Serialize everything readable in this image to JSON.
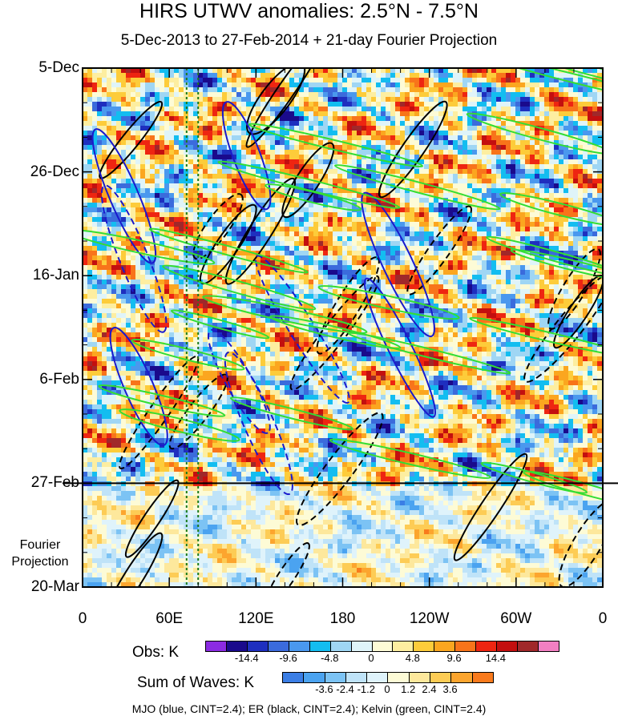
{
  "chart_data": {
    "type": "heatmap",
    "title": "HIRS UTWV anomalies: 2.5°N - 7.5°N",
    "subtitle": "5-Dec-2013 to 27-Feb-2014 + 21-day Fourier Projection",
    "x_ticks": [
      "0",
      "60E",
      "120E",
      "180",
      "120W",
      "60W",
      "0"
    ],
    "y_ticks": [
      "5-Dec",
      "26-Dec",
      "16-Jan",
      "6-Feb",
      "27-Feb",
      "20-Mar"
    ],
    "fourier_label": "Fourier Projection",
    "xlim": [
      0,
      360
    ],
    "time_range_days": [
      0,
      105
    ],
    "observation_end_day": 84,
    "reference_lines_lon": [
      72,
      80
    ],
    "obs_legend": {
      "title": "Obs: K",
      "tick_labels": [
        "-14.4",
        "-9.6",
        "-4.8",
        "0",
        "4.8",
        "9.6",
        "14.4"
      ],
      "colors": [
        "#8b2be2",
        "#1a0a8c",
        "#1e2fbf",
        "#3b6bdc",
        "#4a98ee",
        "#13bdf0",
        "#9fd6f4",
        "#dff4f9",
        "#fdfbd6",
        "#fdeea0",
        "#fdcc3a",
        "#fba61f",
        "#f8741a",
        "#ee2511",
        "#c30f0f",
        "#a0282a",
        "#f27fc2"
      ]
    },
    "wave_legend": {
      "title": "Sum of Waves: K",
      "tick_labels": [
        "-3.6",
        "-2.4",
        "-1.2",
        "0",
        "1.2",
        "2.4",
        "3.6"
      ],
      "colors": [
        "#3b7ee5",
        "#4ba3f0",
        "#7cc3f4",
        "#bfe3f8",
        "#dff3fb",
        "#fdfbd6",
        "#fde89c",
        "#fdcc55",
        "#fca52e",
        "#f97a1c"
      ]
    },
    "caption": "MJO (blue, CINT=2.4); ER (black, CINT=2.4); Kelvin (green, CINT=2.4)",
    "contour_colors": {
      "mjo": "#1a1acc",
      "er": "#000000",
      "kelvin": "#33dd33"
    }
  }
}
